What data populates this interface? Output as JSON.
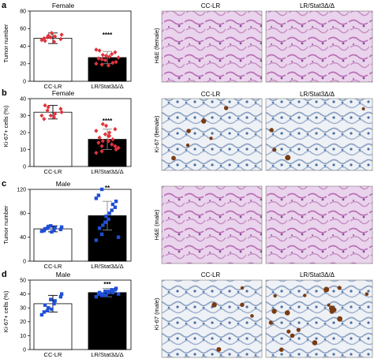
{
  "panels": [
    {
      "letter": "a",
      "sex": "Female",
      "ylabel": "Tumor number",
      "stars": "****",
      "img_side_label": "H&E (female)",
      "img_left_label": "CC-LR",
      "img_right_label": "LR/Stat3Δ/Δ",
      "stain": "he"
    },
    {
      "letter": "b",
      "sex": "Female",
      "ylabel": "Ki-67+ cells (%)",
      "stars": "****",
      "img_side_label": "Ki-67 (female)",
      "img_left_label": "CC-LR",
      "img_right_label": "LR/Stat3Δ/Δ",
      "stain": "ki67"
    },
    {
      "letter": "c",
      "sex": "Male",
      "ylabel": "Tumor number",
      "stars": "**",
      "img_side_label": "H&E (male)",
      "img_left_label": "CC-LR",
      "img_right_label": "LR/Stat3Δ/Δ",
      "stain": "he"
    },
    {
      "letter": "d",
      "sex": "Male",
      "ylabel": "Ki-67+ cells (%)",
      "stars": "***",
      "img_side_label": "Ki-67 (male)",
      "img_left_label": "CC-LR",
      "img_right_label": "LR/Stat3Δ/Δ",
      "stain": "ki67"
    }
  ],
  "colors": {
    "female_points": "#e0343c",
    "male_points": "#1f4fd8",
    "control_bar": "#ffffff",
    "knockout_bar": "#000000",
    "he_tissue": "#c27fbf",
    "ki67_nuclei": "#4a6fa5"
  },
  "chart_data": [
    {
      "type": "bar",
      "panel": "a",
      "categories": [
        "CC-LR",
        "LR/Stat3Δ/Δ"
      ],
      "values": [
        49,
        27
      ],
      "errors": [
        6,
        7
      ],
      "points": [
        [
          47,
          50,
          52,
          45,
          51,
          48,
          53,
          49,
          46,
          50,
          55
        ],
        [
          20,
          25,
          30,
          18,
          28,
          33,
          22,
          26,
          35,
          24,
          29,
          31,
          21,
          27,
          36,
          19
        ]
      ],
      "ylabel": "Tumor number",
      "ylim": [
        0,
        80
      ],
      "yticks": [
        0,
        20,
        40,
        60,
        80
      ],
      "significance": "****"
    },
    {
      "type": "bar",
      "panel": "b",
      "categories": [
        "CC-LR",
        "LR/Stat3Δ/Δ"
      ],
      "values": [
        32,
        16
      ],
      "errors": [
        4,
        6
      ],
      "points": [
        [
          30,
          33,
          35,
          29,
          31,
          34,
          32,
          28,
          36,
          30
        ],
        [
          8,
          12,
          15,
          18,
          20,
          22,
          10,
          14,
          17,
          19,
          24,
          13,
          16,
          11,
          21,
          9,
          25,
          15,
          18,
          12
        ]
      ],
      "ylabel": "Ki-67+ cells (%)",
      "ylim": [
        0,
        40
      ],
      "yticks": [
        0,
        10,
        20,
        30,
        40
      ],
      "significance": "****"
    },
    {
      "type": "bar",
      "panel": "c",
      "categories": [
        "CC-LR",
        "LR/Stat3Δ/Δ"
      ],
      "values": [
        54,
        76
      ],
      "errors": [
        5,
        24
      ],
      "points": [
        [
          50,
          55,
          58,
          52,
          56,
          53,
          57,
          51,
          54,
          59,
          49
        ],
        [
          35,
          45,
          60,
          70,
          80,
          90,
          100,
          110,
          55,
          65,
          75,
          85,
          95,
          40,
          105,
          120
        ]
      ],
      "ylabel": "Tumor number",
      "ylim": [
        0,
        120
      ],
      "yticks": [
        0,
        40,
        80,
        120
      ],
      "significance": "**"
    },
    {
      "type": "bar",
      "panel": "d",
      "categories": [
        "CC-LR",
        "LR/Stat3Δ/Δ"
      ],
      "values": [
        33,
        41
      ],
      "errors": [
        6,
        3
      ],
      "points": [
        [
          25,
          28,
          30,
          33,
          35,
          38,
          40,
          27,
          32,
          36,
          29
        ],
        [
          38,
          39,
          40,
          41,
          42,
          43,
          44,
          40,
          41,
          42,
          39,
          43,
          41,
          40
        ]
      ],
      "ylabel": "Ki-67+ cells (%)",
      "ylim": [
        0,
        50
      ],
      "yticks": [
        0,
        10,
        20,
        30,
        40,
        50
      ],
      "significance": "***"
    }
  ]
}
